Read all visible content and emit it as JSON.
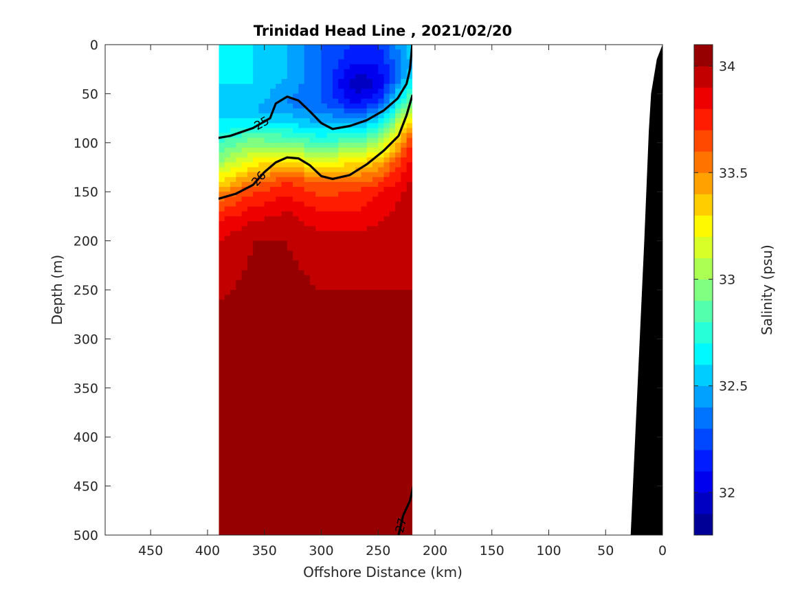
{
  "chart_data": {
    "type": "heatmap",
    "title": "Trinidad Head Line , 2021/02/20",
    "xlabel": "Offshore Distance (km)",
    "ylabel": "Depth (m)",
    "xlim": [
      490,
      0
    ],
    "ylim": [
      0,
      500
    ],
    "x_reversed": true,
    "y_reversed": true,
    "x_ticks": [
      "450",
      "400",
      "350",
      "300",
      "250",
      "200",
      "150",
      "100",
      "50",
      "0"
    ],
    "y_ticks": [
      "0",
      "50",
      "100",
      "150",
      "200",
      "250",
      "300",
      "350",
      "400",
      "450",
      "500"
    ],
    "colorbar": {
      "label": "Salinity (psu)",
      "range": [
        31.8,
        34.1
      ],
      "ticks": [
        "32",
        "32.5",
        "33",
        "33.5",
        "34"
      ]
    },
    "data_extent_km": [
      390,
      220
    ],
    "sections": [
      {
        "x": 390,
        "depths": [
          0,
          50,
          80,
          100,
          120,
          140,
          160,
          180,
          200,
          260,
          300,
          400,
          500
        ],
        "values": [
          32.6,
          32.6,
          32.6,
          32.8,
          33.0,
          33.3,
          33.6,
          33.8,
          33.9,
          34.0,
          34.0,
          34.05,
          34.05
        ]
      },
      {
        "x": 360,
        "depths": [
          0,
          40,
          70,
          90,
          110,
          130,
          150,
          180,
          200,
          300,
          400,
          460,
          500
        ],
        "values": [
          32.6,
          32.6,
          32.5,
          32.8,
          33.1,
          33.4,
          33.7,
          33.9,
          34.0,
          34.05,
          34.05,
          34.1,
          34.1
        ]
      },
      {
        "x": 330,
        "depths": [
          0,
          30,
          60,
          80,
          100,
          120,
          140,
          170,
          200,
          300,
          400,
          500
        ],
        "values": [
          32.5,
          32.5,
          32.4,
          32.6,
          32.9,
          33.3,
          33.7,
          33.9,
          34.0,
          34.05,
          34.05,
          34.05
        ]
      },
      {
        "x": 300,
        "depths": [
          0,
          30,
          60,
          80,
          100,
          120,
          140,
          170,
          200,
          250,
          300,
          400,
          500
        ],
        "values": [
          32.3,
          32.3,
          32.3,
          32.5,
          32.8,
          33.2,
          33.6,
          33.8,
          33.95,
          34.0,
          34.0,
          34.05,
          34.05
        ]
      },
      {
        "x": 270,
        "depths": [
          0,
          20,
          40,
          60,
          80,
          100,
          120,
          150,
          200,
          250,
          300,
          400,
          500
        ],
        "values": [
          32.2,
          32.1,
          31.9,
          32.1,
          32.5,
          32.9,
          33.3,
          33.7,
          33.95,
          34.0,
          34.05,
          34.05,
          34.1
        ]
      },
      {
        "x": 250,
        "depths": [
          0,
          20,
          40,
          60,
          80,
          100,
          120,
          150,
          200,
          250,
          300,
          400,
          500
        ],
        "values": [
          32.2,
          32.1,
          32.0,
          32.2,
          32.6,
          33.0,
          33.4,
          33.8,
          33.95,
          34.0,
          34.05,
          34.05,
          34.1
        ]
      },
      {
        "x": 220,
        "depths": [
          0,
          20,
          40,
          60,
          80,
          100,
          130,
          160,
          200,
          250,
          300,
          400,
          500
        ],
        "values": [
          32.6,
          32.5,
          32.7,
          33.0,
          33.4,
          33.7,
          33.9,
          33.95,
          34.0,
          34.0,
          34.05,
          34.05,
          34.05
        ]
      }
    ],
    "isopycnals": [
      {
        "label": "25",
        "bold": true,
        "points": [
          [
            390,
            95
          ],
          [
            380,
            93
          ],
          [
            360,
            85
          ],
          [
            345,
            75
          ],
          [
            340,
            60
          ],
          [
            330,
            53
          ],
          [
            320,
            57
          ],
          [
            310,
            68
          ],
          [
            300,
            80
          ],
          [
            290,
            86
          ],
          [
            275,
            83
          ],
          [
            260,
            77
          ],
          [
            245,
            67
          ],
          [
            233,
            55
          ],
          [
            225,
            40
          ],
          [
            222,
            25
          ],
          [
            220,
            0
          ]
        ]
      },
      {
        "label": "26",
        "bold": true,
        "points": [
          [
            390,
            157
          ],
          [
            375,
            152
          ],
          [
            360,
            143
          ],
          [
            350,
            130
          ],
          [
            340,
            120
          ],
          [
            330,
            115
          ],
          [
            320,
            116
          ],
          [
            310,
            123
          ],
          [
            300,
            134
          ],
          [
            290,
            137
          ],
          [
            275,
            133
          ],
          [
            260,
            122
          ],
          [
            245,
            108
          ],
          [
            232,
            93
          ],
          [
            225,
            72
          ],
          [
            220,
            52
          ]
        ]
      },
      {
        "label": "27",
        "bold": true,
        "points": [
          [
            232,
            500
          ],
          [
            228,
            480
          ],
          [
            222,
            465
          ],
          [
            219,
            450
          ]
        ]
      }
    ],
    "bathymetry_km_depth": [
      [
        0,
        0
      ],
      [
        5,
        15
      ],
      [
        10,
        50
      ],
      [
        12,
        88
      ],
      [
        16,
        200
      ],
      [
        20,
        300
      ],
      [
        28,
        500
      ],
      [
        0,
        500
      ]
    ]
  }
}
